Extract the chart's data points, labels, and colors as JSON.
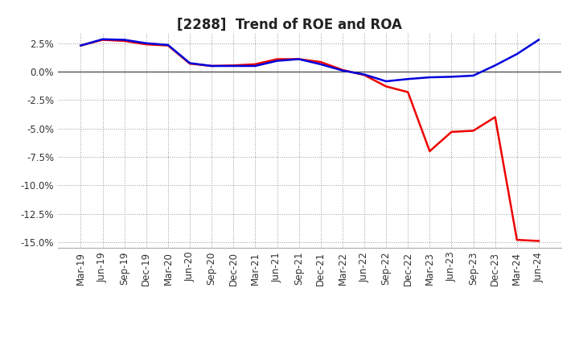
{
  "title": "[2288]  Trend of ROE and ROA",
  "labels": [
    "Mar-19",
    "Jun-19",
    "Sep-19",
    "Dec-19",
    "Mar-20",
    "Jun-20",
    "Sep-20",
    "Dec-20",
    "Mar-21",
    "Jun-21",
    "Sep-21",
    "Dec-21",
    "Mar-22",
    "Jun-22",
    "Sep-22",
    "Dec-22",
    "Mar-23",
    "Jun-23",
    "Sep-23",
    "Dec-23",
    "Mar-24",
    "Jun-24"
  ],
  "ROE": [
    2.3,
    2.8,
    2.7,
    2.4,
    2.3,
    0.7,
    0.5,
    0.55,
    0.65,
    1.1,
    1.1,
    0.85,
    0.15,
    -0.3,
    -1.3,
    -1.8,
    -7.0,
    -5.3,
    -5.2,
    -4.0,
    -14.8,
    -14.9
  ],
  "ROA": [
    2.3,
    2.85,
    2.8,
    2.5,
    2.35,
    0.75,
    0.5,
    0.5,
    0.5,
    0.95,
    1.1,
    0.65,
    0.1,
    -0.25,
    -0.85,
    -0.65,
    -0.5,
    -0.45,
    -0.35,
    0.55,
    1.55,
    2.8
  ],
  "ROE_color": "#ee0000",
  "ROA_color": "#0000dd",
  "bg_color": "#ffffff",
  "grid_color": "#999999",
  "ylim": [
    -15.5,
    3.5
  ],
  "yticks": [
    -15.0,
    -12.5,
    -10.0,
    -7.5,
    -5.0,
    -2.5,
    0.0,
    2.5
  ],
  "title_fontsize": 12,
  "legend_fontsize": 10,
  "tick_fontsize": 8.5
}
